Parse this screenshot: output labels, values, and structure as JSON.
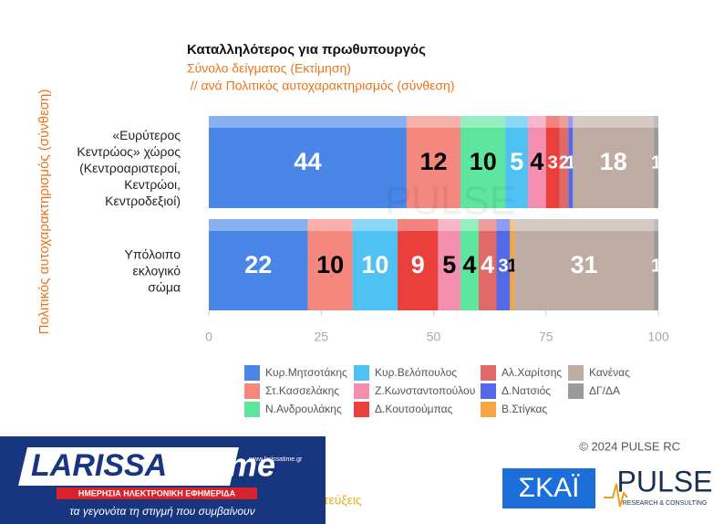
{
  "chart_data": {
    "type": "stacked-bar-horizontal",
    "title": "Καταλληλότερος για πρωθυπουργός",
    "subtitle": "Σύνολο δείγματος   (Εκτίμηση)",
    "subtitle2": " // ανά Πολιτικός αυτοχαρακτηρισμός (σύνθεση)",
    "y_label": "Πολιτικός αυτοχαρακτηρισμός (σύνθεση)",
    "watermark": "PULSE",
    "xlim": [
      0,
      100
    ],
    "xticks": [
      0,
      25,
      50,
      75,
      100
    ],
    "series": [
      {
        "name": "Κυρ.Μητσοτάκης",
        "color": "#4a86e8",
        "label_color": "#ffffff"
      },
      {
        "name": "Στ.Κασσελάκης",
        "color": "#f4877e",
        "label_color": "#000000"
      },
      {
        "name": "Ν.Ανδρουλάκης",
        "color": "#5ee69e",
        "label_color": "#000000"
      },
      {
        "name": "Κυρ.Βελόπουλος",
        "color": "#4fc1f2",
        "label_color": "#ffffff"
      },
      {
        "name": "Ζ.Κωνσταντοπούλου",
        "color": "#f58fb0",
        "label_color": "#000000"
      },
      {
        "name": "Δ.Κουτσούμπας",
        "color": "#ea3f3a",
        "label_color": "#ffffff"
      },
      {
        "name": "Αλ.Χαρίτσης",
        "color": "#e06a6a",
        "label_color": "#ffffff"
      },
      {
        "name": "Δ.Νατσιός",
        "color": "#5468ea",
        "label_color": "#ffffff"
      },
      {
        "name": "Β.Στίγκας",
        "color": "#f6a640",
        "label_color": "#000000"
      },
      {
        "name": "Κανένας",
        "color": "#bfaca5",
        "label_color": "#ffffff"
      },
      {
        "name": "ΔΓ/ΔΑ",
        "color": "#9a9a9a",
        "label_color": "#ffffff"
      }
    ],
    "stacks": [
      {
        "category": [
          "«Ευρύτερος",
          "Κεντρώος» χώρος",
          "(Κεντροαριστεροί,",
          "Κεντρώοι,",
          "Κεντροδεξιοί)"
        ],
        "segments": [
          {
            "name": "Κυρ.Μητσοτάκης",
            "value": 44
          },
          {
            "name": "Στ.Κασσελάκης",
            "value": 12
          },
          {
            "name": "Ν.Ανδρουλάκης",
            "value": 10
          },
          {
            "name": "Κυρ.Βελόπουλος",
            "value": 5
          },
          {
            "name": "Ζ.Κωνσταντοπούλου",
            "value": 4
          },
          {
            "name": "Δ.Κουτσούμπας",
            "value": 3
          },
          {
            "name": "Αλ.Χαρίτσης",
            "value": 2
          },
          {
            "name": "Δ.Νατσιός",
            "value": 1
          },
          {
            "name": "Κανένας",
            "value": 18
          },
          {
            "name": "ΔΓ/ΔΑ",
            "value": 1
          }
        ]
      },
      {
        "category": [
          "Υπόλοιπο",
          "εκλογικό",
          "σώμα"
        ],
        "segments": [
          {
            "name": "Κυρ.Μητσοτάκης",
            "value": 22
          },
          {
            "name": "Στ.Κασσελάκης",
            "value": 10
          },
          {
            "name": "Κυρ.Βελόπουλος",
            "value": 10
          },
          {
            "name": "Δ.Κουτσούμπας",
            "value": 9
          },
          {
            "name": "Ζ.Κωνσταντοπούλου",
            "value": 5
          },
          {
            "name": "Ν.Ανδρουλάκης",
            "value": 4
          },
          {
            "name": "Αλ.Χαρίτσης",
            "value": 4
          },
          {
            "name": "Δ.Νατσιός",
            "value": 3
          },
          {
            "name": "Β.Στίγκας",
            "value": 1
          },
          {
            "name": "Κανένας",
            "value": 31
          },
          {
            "name": "ΔΓ/ΔΑ",
            "value": 1
          }
        ]
      }
    ]
  },
  "footer": {
    "copyright": "© 2024 PULSE RC",
    "partial_text": "τεύξεις",
    "skai_logo": "ΣΚΑΪ",
    "pulse_logo": "PULSE",
    "pulse_tagline": "RESEARCH & CONSULTING",
    "banner": {
      "name_a": "LARISSA",
      "name_b": "time",
      "url": "www.larissatime.gr",
      "tag": "ΗΜΕΡΗΣΙΑ ΗΛΕΚΤΡΟΝΙΚΗ ΕΦΗΜΕΡΙΔΑ",
      "slogan": "τα γεγονότα τη στιγμή που συμβαίνουν"
    }
  }
}
